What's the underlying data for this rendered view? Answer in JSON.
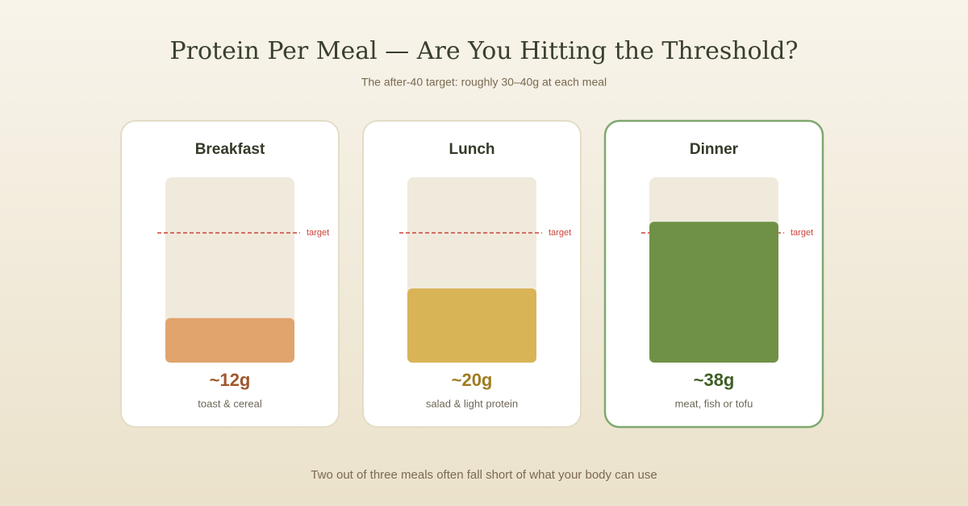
{
  "chart_data": {
    "type": "bar",
    "title": "Protein Per Meal — Are You Hitting the Threshold?",
    "subtitle": "The after-40 target: roughly 30–40g at each meal",
    "categories": [
      "Breakfast",
      "Lunch",
      "Dinner"
    ],
    "values": [
      12,
      20,
      38
    ],
    "value_labels": [
      "~12g",
      "~20g",
      "~38g"
    ],
    "descriptions": [
      "toast & cereal",
      "salad & light protein",
      "meat, fish or tofu"
    ],
    "colors": [
      "#e0a46c",
      "#d9b457",
      "#6f9145"
    ],
    "label_colors": [
      "#a0582c",
      "#a07c20",
      "#3e5e26"
    ],
    "card_borders": [
      "#e3dcc6",
      "#e3dcc6",
      "#7fa86f"
    ],
    "ylim": [
      0,
      50
    ],
    "target": {
      "value": 35,
      "label": "target",
      "color": "#c8443a"
    },
    "footnote": "Two out of three meals often fall short of what your body can use"
  }
}
